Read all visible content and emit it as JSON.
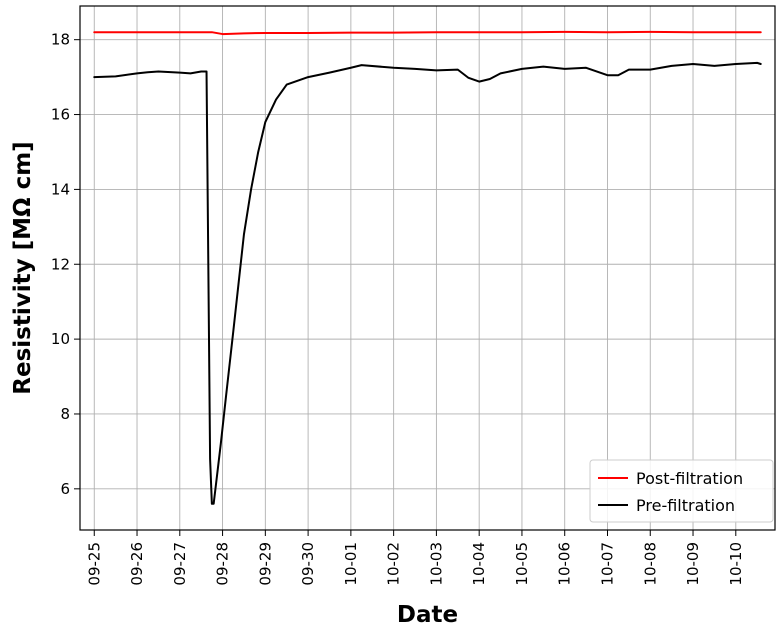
{
  "chart_data": {
    "type": "line",
    "title": "",
    "xlabel": "Date",
    "ylabel": "Resistivity [MΩ cm]",
    "x_ticks": [
      "09-25",
      "09-26",
      "09-27",
      "09-28",
      "09-29",
      "09-30",
      "10-01",
      "10-02",
      "10-03",
      "10-04",
      "10-05",
      "10-06",
      "10-07",
      "10-08",
      "10-09",
      "10-10"
    ],
    "y_ticks": [
      6,
      8,
      10,
      12,
      14,
      16,
      18
    ],
    "xlim": [
      "09-24 16:00",
      "10-10 22:00"
    ],
    "ylim": [
      4.9,
      18.9
    ],
    "grid": true,
    "legend_position": "bottom-right",
    "series": [
      {
        "name": "Post-filtration",
        "color": "#ff0000",
        "points": [
          [
            "09-25 00:00",
            18.2
          ],
          [
            "09-26 00:00",
            18.2
          ],
          [
            "09-27 00:00",
            18.2
          ],
          [
            "09-27 18:00",
            18.2
          ],
          [
            "09-28 00:00",
            18.15
          ],
          [
            "09-28 12:00",
            18.17
          ],
          [
            "09-29 00:00",
            18.18
          ],
          [
            "09-30 00:00",
            18.18
          ],
          [
            "10-01 00:00",
            18.19
          ],
          [
            "10-02 00:00",
            18.19
          ],
          [
            "10-03 00:00",
            18.2
          ],
          [
            "10-04 00:00",
            18.2
          ],
          [
            "10-05 00:00",
            18.2
          ],
          [
            "10-06 00:00",
            18.21
          ],
          [
            "10-07 00:00",
            18.2
          ],
          [
            "10-08 00:00",
            18.21
          ],
          [
            "10-09 00:00",
            18.2
          ],
          [
            "10-10 00:00",
            18.2
          ],
          [
            "10-10 14:00",
            18.2
          ]
        ]
      },
      {
        "name": "Pre-filtration",
        "color": "#000000",
        "points": [
          [
            "09-25 00:00",
            17.0
          ],
          [
            "09-25 12:00",
            17.02
          ],
          [
            "09-26 00:00",
            17.1
          ],
          [
            "09-26 06:00",
            17.13
          ],
          [
            "09-26 12:00",
            17.15
          ],
          [
            "09-27 00:00",
            17.12
          ],
          [
            "09-27 06:00",
            17.1
          ],
          [
            "09-27 12:00",
            17.15
          ],
          [
            "09-27 15:00",
            17.15
          ],
          [
            "09-27 16:00",
            12.0
          ],
          [
            "09-27 17:00",
            6.8
          ],
          [
            "09-27 18:00",
            5.6
          ],
          [
            "09-27 19:00",
            5.6
          ],
          [
            "09-27 20:00",
            6.0
          ],
          [
            "09-27 23:00",
            7.2
          ],
          [
            "09-28 02:00",
            8.5
          ],
          [
            "09-28 06:00",
            10.2
          ],
          [
            "09-28 09:00",
            11.5
          ],
          [
            "09-28 12:00",
            12.8
          ],
          [
            "09-28 16:00",
            14.0
          ],
          [
            "09-28 20:00",
            15.0
          ],
          [
            "09-29 00:00",
            15.8
          ],
          [
            "09-29 06:00",
            16.4
          ],
          [
            "09-29 12:00",
            16.8
          ],
          [
            "09-30 00:00",
            17.0
          ],
          [
            "09-30 12:00",
            17.12
          ],
          [
            "10-01 00:00",
            17.25
          ],
          [
            "10-01 06:00",
            17.32
          ],
          [
            "10-02 00:00",
            17.25
          ],
          [
            "10-02 12:00",
            17.22
          ],
          [
            "10-03 00:00",
            17.18
          ],
          [
            "10-03 12:00",
            17.2
          ],
          [
            "10-03 18:00",
            16.98
          ],
          [
            "10-04 00:00",
            16.88
          ],
          [
            "10-04 06:00",
            16.95
          ],
          [
            "10-04 12:00",
            17.1
          ],
          [
            "10-05 00:00",
            17.22
          ],
          [
            "10-05 12:00",
            17.28
          ],
          [
            "10-06 00:00",
            17.22
          ],
          [
            "10-06 12:00",
            17.25
          ],
          [
            "10-07 00:00",
            17.05
          ],
          [
            "10-07 06:00",
            17.05
          ],
          [
            "10-07 12:00",
            17.2
          ],
          [
            "10-08 00:00",
            17.2
          ],
          [
            "10-08 12:00",
            17.3
          ],
          [
            "10-09 00:00",
            17.35
          ],
          [
            "10-09 12:00",
            17.3
          ],
          [
            "10-10 00:00",
            17.35
          ],
          [
            "10-10 12:00",
            17.38
          ],
          [
            "10-10 14:00",
            17.35
          ]
        ]
      }
    ]
  }
}
